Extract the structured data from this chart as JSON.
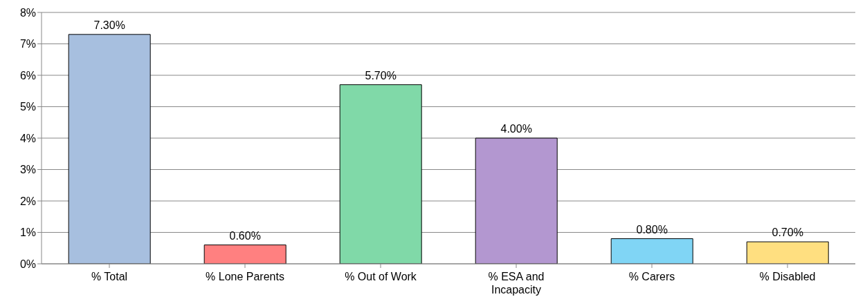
{
  "chart_data": {
    "type": "bar",
    "categories": [
      "% Total",
      "% Lone Parents",
      "% Out of Work",
      "% ESA and Incapacity",
      "% Carers",
      "% Disabled"
    ],
    "values": [
      7.3,
      0.6,
      5.7,
      4.0,
      0.8,
      0.7
    ],
    "colors": [
      "#a7bfdf",
      "#ff8080",
      "#80d9a8",
      "#b397d0",
      "#80d5f5",
      "#ffdf80"
    ],
    "value_labels": [
      "7.30%",
      "0.60%",
      "5.70%",
      "4.00%",
      "0.80%",
      "0.70%"
    ],
    "ylim": [
      0,
      8
    ],
    "yticks": [
      {
        "value": 0,
        "label": "0%"
      },
      {
        "value": 1,
        "label": "1%"
      },
      {
        "value": 2,
        "label": "2%"
      },
      {
        "value": 3,
        "label": "3%"
      },
      {
        "value": 4,
        "label": "4%"
      },
      {
        "value": 5,
        "label": "5%"
      },
      {
        "value": 6,
        "label": "6%"
      },
      {
        "value": 7,
        "label": "7%"
      },
      {
        "value": 8,
        "label": "8%"
      }
    ],
    "grid": "y",
    "legend": false
  }
}
